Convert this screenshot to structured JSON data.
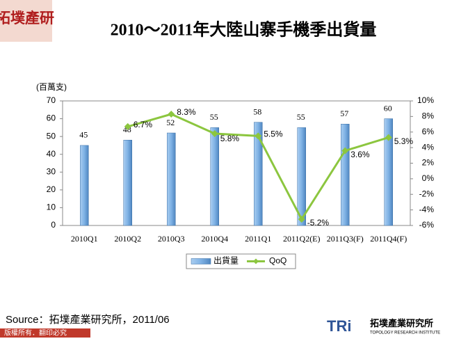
{
  "logo": "拓墣產研",
  "chart_data": {
    "type": "bar",
    "title": "2010～2011年大陸山寨手機季出貨量",
    "y_label": "(百萬支)",
    "categories": [
      "2010Q1",
      "2010Q2",
      "2010Q3",
      "2010Q4",
      "2011Q1",
      "2011Q2(E)",
      "2011Q3(F)",
      "2011Q4(F)"
    ],
    "series": [
      {
        "name": "出貨量",
        "type": "bar",
        "color": "#7fb2e5",
        "values": [
          45,
          48,
          52,
          55,
          58,
          55,
          57,
          60
        ]
      },
      {
        "name": "QoQ",
        "type": "line",
        "axis": "y2",
        "color": "#8cc63f",
        "values": [
          null,
          6.7,
          8.3,
          5.8,
          5.5,
          -5.2,
          3.6,
          5.3
        ],
        "value_labels": [
          null,
          "6.7%",
          "8.3%",
          "5.8%",
          "5.5%",
          "-5.2%",
          "3.6%",
          "5.3%"
        ]
      }
    ],
    "ylim": [
      0,
      70
    ],
    "yticks": [
      0,
      10,
      20,
      30,
      40,
      50,
      60,
      70
    ],
    "y2lim": [
      -6,
      10
    ],
    "y2ticks": [
      {
        "value": -6,
        "label": "-6%"
      },
      {
        "value": -4,
        "label": "-4%"
      },
      {
        "value": -2,
        "label": "-2%"
      },
      {
        "value": 0,
        "label": "0%"
      },
      {
        "value": 2,
        "label": "2%"
      },
      {
        "value": 4,
        "label": "4%"
      },
      {
        "value": 6,
        "label": "6%"
      },
      {
        "value": 8,
        "label": "8%"
      },
      {
        "value": 10,
        "label": "10%"
      }
    ],
    "legend": "bottom",
    "grid": false
  },
  "source": "Source：拓墣產業研究所，2011/06",
  "footer": "版權所有．翻印必究",
  "brand": {
    "mark": "TRi",
    "name": "拓墣產業研究所",
    "english": "TOPOLOGY RESEARCH INSTITUTE"
  }
}
